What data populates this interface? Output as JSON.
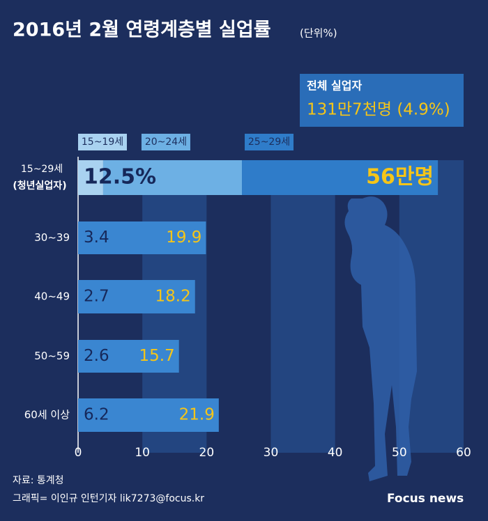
{
  "chart_data": {
    "type": "bar",
    "orientation": "horizontal",
    "title": "2016년 2월 연령계층별 실업률",
    "unit_note": "(단위%)",
    "categories": [
      "15~29세",
      "30~39",
      "40~49",
      "50~59",
      "60세 이상"
    ],
    "category_note": "(청년실업자)",
    "values": [
      56,
      19.9,
      18.2,
      15.7,
      21.9
    ],
    "value_labels": [
      "56만명",
      "19.9",
      "18.2",
      "15.7",
      "21.9"
    ],
    "rates": [
      12.5,
      3.4,
      2.7,
      2.6,
      6.2
    ],
    "rate_labels": [
      "12.5%",
      "3.4",
      "2.7",
      "2.6",
      "6.2"
    ],
    "color": "#3a86d1",
    "segments": [
      {
        "name": "15~19세",
        "value": 3.9,
        "color": "#a9d2f0"
      },
      {
        "name": "20~24세",
        "value": 21.6,
        "color": "#6db0e4"
      },
      {
        "name": "25~29세",
        "value": 30.5,
        "color": "#2f7cc9"
      }
    ],
    "total": {
      "label": "전체 실업자",
      "value_label": "131만7천명 (4.9%)"
    },
    "xlim": [
      0,
      60
    ],
    "xticks": [
      0,
      10,
      20,
      30,
      40,
      50,
      60
    ],
    "source": "자료: 통계청",
    "credit": "그래픽= 이인규 인턴기자 lik7273@focus.kr",
    "logo": "Focus news"
  }
}
